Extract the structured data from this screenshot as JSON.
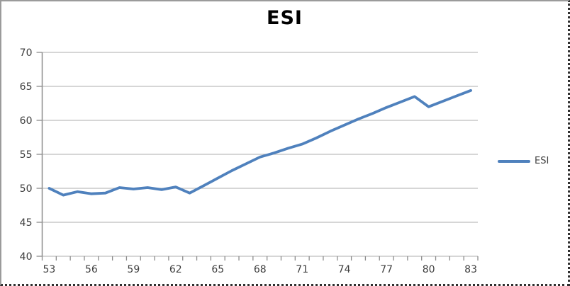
{
  "chart_data": {
    "type": "line",
    "title": "ESI",
    "x": [
      53,
      54,
      55,
      56,
      57,
      58,
      59,
      60,
      61,
      62,
      63,
      64,
      65,
      66,
      67,
      68,
      69,
      70,
      71,
      72,
      73,
      74,
      75,
      76,
      77,
      78,
      79,
      80,
      81,
      82,
      83
    ],
    "series": [
      {
        "name": "ESI",
        "color": "#4F81BD",
        "values": [
          50.0,
          49.0,
          49.5,
          49.2,
          49.3,
          50.1,
          49.9,
          50.1,
          49.8,
          50.2,
          49.3,
          50.4,
          51.5,
          52.6,
          53.6,
          54.6,
          55.2,
          55.9,
          56.5,
          57.4,
          58.4,
          59.3,
          60.2,
          61.0,
          61.9,
          62.7,
          63.5,
          62.0,
          62.8,
          63.6,
          64.4
        ]
      }
    ],
    "xlabel": "",
    "ylabel": "",
    "ylim": [
      40,
      70
    ],
    "ytick_step": 5,
    "xtick_label_step": 3,
    "yticks": [
      40,
      45,
      50,
      55,
      60,
      65,
      70
    ],
    "xtick_labels": [
      53,
      56,
      59,
      62,
      65,
      68,
      71,
      74,
      77,
      80,
      83
    ],
    "grid": true,
    "legend_position": "right",
    "legend_entries": [
      "ESI"
    ]
  },
  "colors": {
    "series_line": "#4F81BD",
    "gridline": "#BEBEBE",
    "axis": "#8C8C8C",
    "tick_text": "#3F3F3F",
    "title_text": "#000000",
    "background": "#FFFFFF"
  }
}
